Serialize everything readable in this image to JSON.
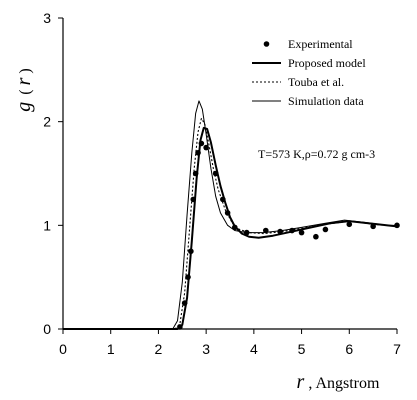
{
  "chart_data": {
    "type": "line",
    "title": "",
    "xlabel_symbol": "r",
    "xlabel_unit": ", Angstrom",
    "ylabel_parts": [
      "g",
      "(",
      "r",
      ")"
    ],
    "xlim": [
      0,
      7
    ],
    "ylim": [
      0,
      3
    ],
    "x_ticks": [
      "0",
      "1",
      "2",
      "3",
      "4",
      "5",
      "6",
      "7"
    ],
    "y_ticks": [
      "0",
      "1",
      "2",
      "3"
    ],
    "grid": false,
    "legend_position": "top-right",
    "annotation": "T=573 K,ρ=0.72 g cm-3",
    "series": [
      {
        "name": "Experimental",
        "style": "markers",
        "color": "#000000",
        "points": [
          [
            2.45,
            0.02
          ],
          [
            2.55,
            0.25
          ],
          [
            2.62,
            0.5
          ],
          [
            2.68,
            0.75
          ],
          [
            2.73,
            1.25
          ],
          [
            2.78,
            1.5
          ],
          [
            2.83,
            1.7
          ],
          [
            2.9,
            1.79
          ],
          [
            3.0,
            1.75
          ],
          [
            3.2,
            1.5
          ],
          [
            3.35,
            1.25
          ],
          [
            3.45,
            1.12
          ],
          [
            3.6,
            0.98
          ],
          [
            3.85,
            0.93
          ],
          [
            4.25,
            0.95
          ],
          [
            4.55,
            0.94
          ],
          [
            4.8,
            0.95
          ],
          [
            5.0,
            0.93
          ],
          [
            5.3,
            0.89
          ],
          [
            5.5,
            0.96
          ],
          [
            6.0,
            1.01
          ],
          [
            6.5,
            0.99
          ],
          [
            7.0,
            1.0
          ]
        ]
      },
      {
        "name": "Proposed model",
        "style": "solid-bold",
        "color": "#000000",
        "points": [
          [
            0,
            0
          ],
          [
            2.4,
            0.0
          ],
          [
            2.5,
            0.04
          ],
          [
            2.6,
            0.3
          ],
          [
            2.7,
            0.85
          ],
          [
            2.8,
            1.45
          ],
          [
            2.88,
            1.82
          ],
          [
            2.95,
            1.94
          ],
          [
            3.02,
            1.93
          ],
          [
            3.1,
            1.8
          ],
          [
            3.2,
            1.58
          ],
          [
            3.3,
            1.38
          ],
          [
            3.4,
            1.22
          ],
          [
            3.5,
            1.08
          ],
          [
            3.6,
            0.99
          ],
          [
            3.75,
            0.92
          ],
          [
            3.9,
            0.89
          ],
          [
            4.1,
            0.88
          ],
          [
            4.4,
            0.9
          ],
          [
            4.8,
            0.94
          ],
          [
            5.2,
            0.98
          ],
          [
            5.6,
            1.02
          ],
          [
            6.0,
            1.04
          ],
          [
            6.4,
            1.02
          ],
          [
            6.8,
            1.0
          ],
          [
            7.0,
            0.99
          ]
        ]
      },
      {
        "name": "Touba et al.",
        "style": "dotted",
        "color": "#000000",
        "points": [
          [
            0,
            0
          ],
          [
            2.35,
            0.0
          ],
          [
            2.45,
            0.05
          ],
          [
            2.55,
            0.35
          ],
          [
            2.65,
            0.95
          ],
          [
            2.75,
            1.55
          ],
          [
            2.83,
            1.9
          ],
          [
            2.9,
            2.03
          ],
          [
            2.97,
            1.98
          ],
          [
            3.05,
            1.8
          ],
          [
            3.15,
            1.55
          ],
          [
            3.25,
            1.35
          ],
          [
            3.4,
            1.15
          ],
          [
            3.55,
            1.02
          ],
          [
            3.7,
            0.96
          ],
          [
            3.9,
            0.93
          ],
          [
            4.2,
            0.92
          ],
          [
            4.6,
            0.94
          ],
          [
            5.0,
            0.97
          ],
          [
            5.5,
            1.01
          ],
          [
            6.0,
            1.04
          ],
          [
            6.5,
            1.01
          ],
          [
            7.0,
            0.99
          ]
        ]
      },
      {
        "name": "Simulation data",
        "style": "solid-thin",
        "color": "#000000",
        "points": [
          [
            0,
            0
          ],
          [
            2.3,
            0.0
          ],
          [
            2.4,
            0.08
          ],
          [
            2.5,
            0.45
          ],
          [
            2.6,
            1.1
          ],
          [
            2.7,
            1.7
          ],
          [
            2.78,
            2.08
          ],
          [
            2.85,
            2.2
          ],
          [
            2.92,
            2.12
          ],
          [
            3.0,
            1.88
          ],
          [
            3.1,
            1.55
          ],
          [
            3.2,
            1.28
          ],
          [
            3.3,
            1.12
          ],
          [
            3.45,
            1.0
          ],
          [
            3.6,
            0.95
          ],
          [
            3.85,
            0.93
          ],
          [
            4.2,
            0.93
          ],
          [
            4.6,
            0.95
          ],
          [
            5.0,
            0.98
          ],
          [
            5.5,
            1.02
          ],
          [
            5.9,
            1.05
          ],
          [
            6.3,
            1.03
          ],
          [
            6.8,
            1.0
          ],
          [
            7.0,
            1.0
          ]
        ]
      }
    ]
  }
}
